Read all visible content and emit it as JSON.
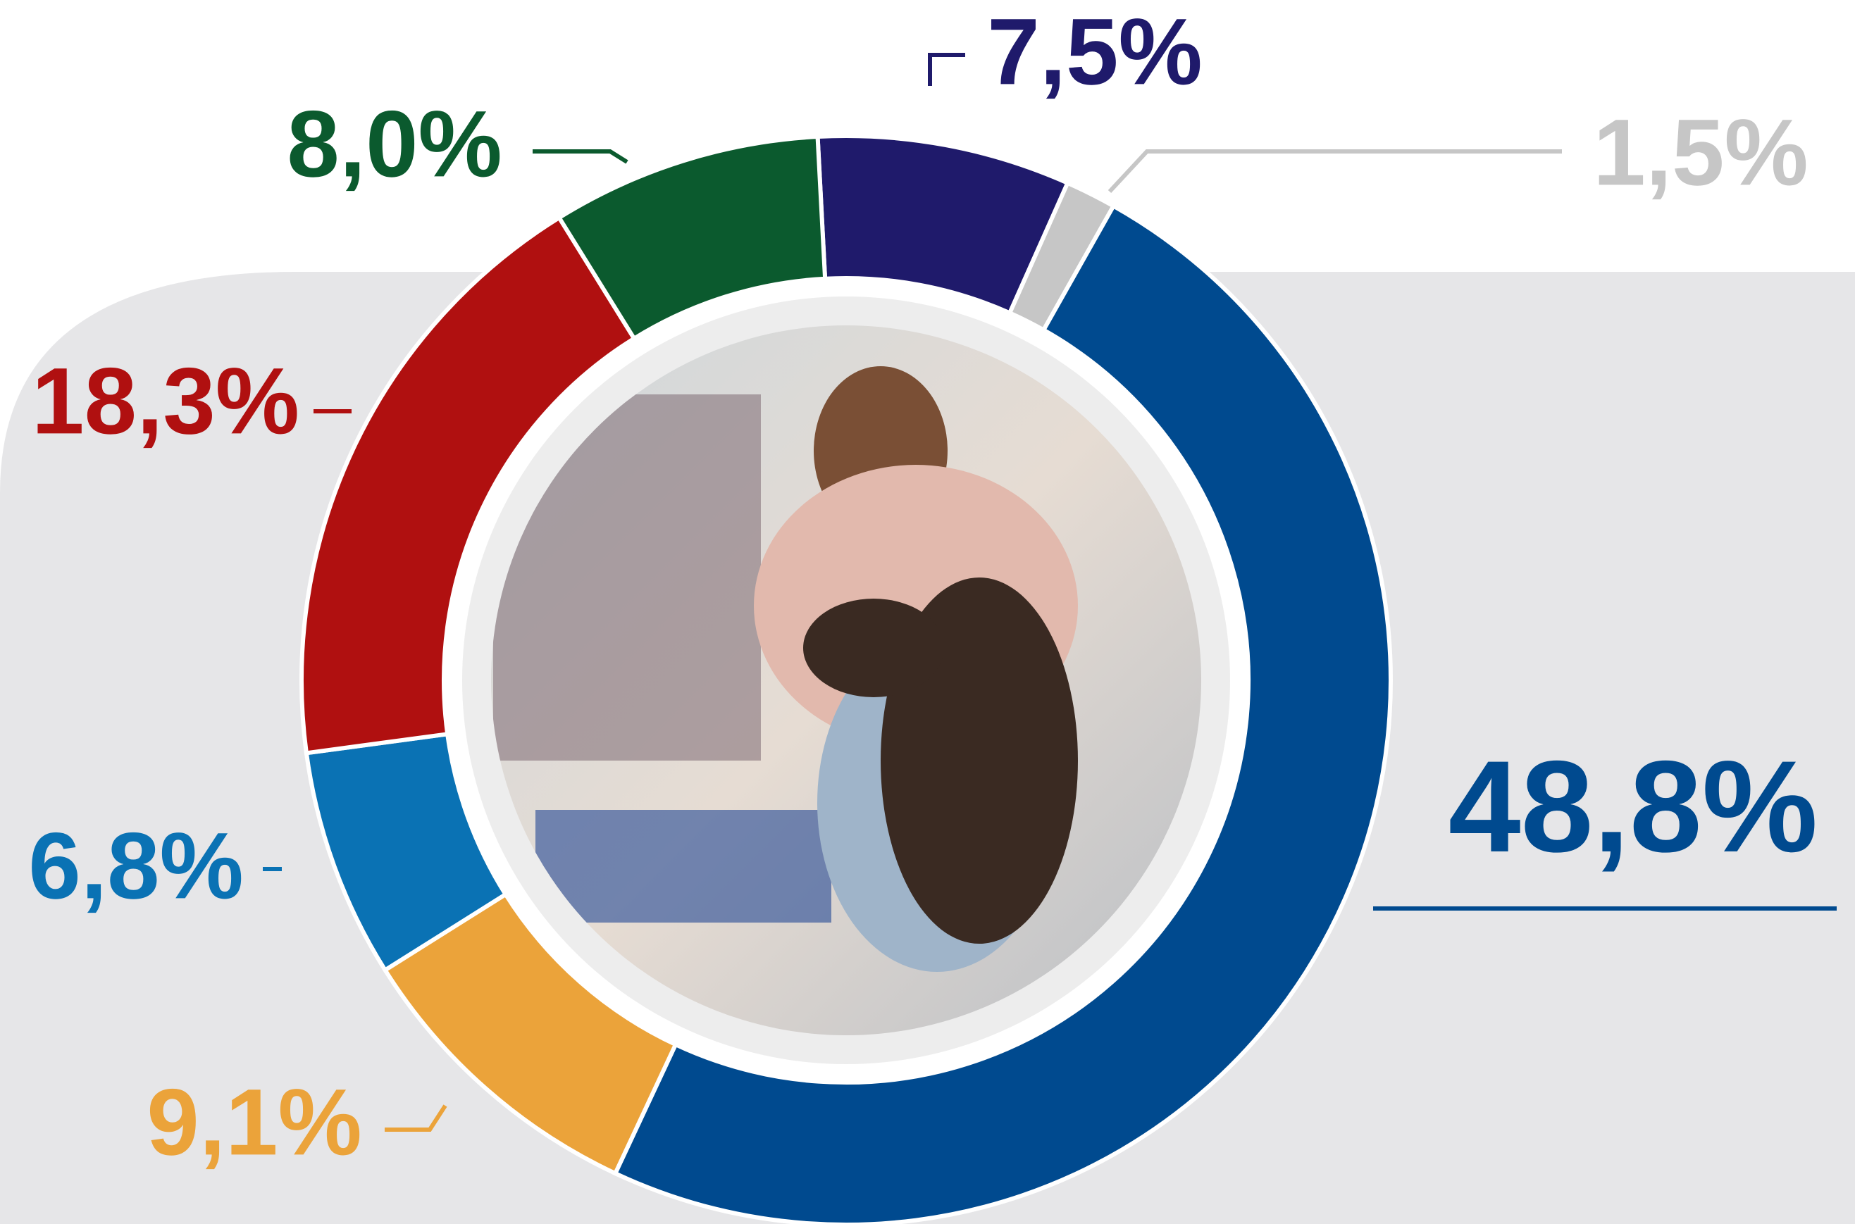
{
  "chart_data": {
    "type": "donut",
    "categories": [
      null,
      null,
      null,
      null,
      null,
      null,
      null
    ],
    "values": [
      7.5,
      1.5,
      48.8,
      9.1,
      6.8,
      18.3,
      8.0
    ],
    "value_labels": [
      "7,5%",
      "1,5%",
      "48,8%",
      "9,1%",
      "6,8%",
      "18,3%",
      "8,0%"
    ],
    "colors": [
      "#1f1a6b",
      "#c6c6c6",
      "#004a8f",
      "#eba33a",
      "#0a72b4",
      "#b01010",
      "#0b5a2e"
    ]
  }
}
